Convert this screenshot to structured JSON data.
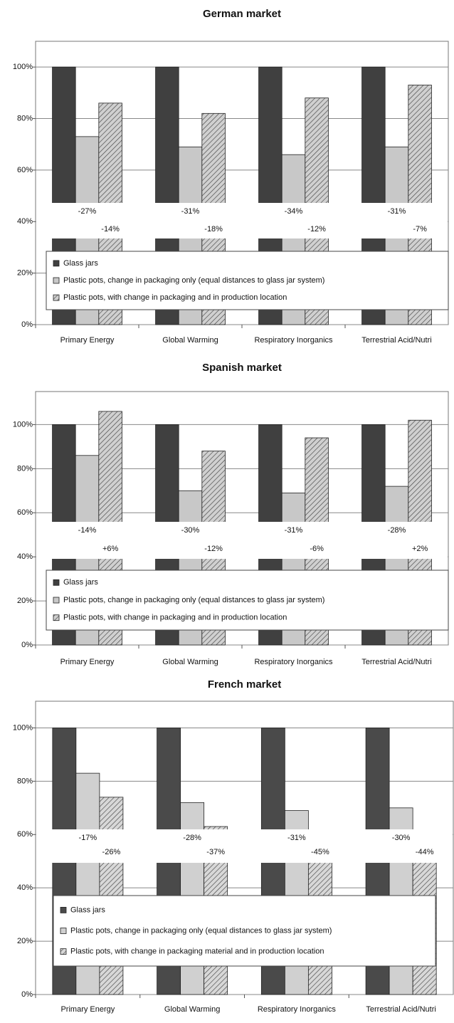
{
  "chart_data": [
    {
      "type": "bar",
      "title": "German market",
      "categories": [
        "Primary Energy",
        "Global Warming",
        "Respiratory Inorganics",
        "Terrestrial Acid/Nutri"
      ],
      "series": [
        {
          "name": "Glass jars",
          "color": "#404040",
          "values": [
            100,
            100,
            100,
            100
          ]
        },
        {
          "name": "Plastic pots, change in packaging only (equal distances to glass jar system)",
          "color": "#c8c8c8",
          "values": [
            73,
            69,
            66,
            69
          ],
          "change_labels": [
            "-27%",
            "-31%",
            "-34%",
            "-31%"
          ]
        },
        {
          "name": "Plastic pots, with change in packaging and in production location",
          "color": "#d0d0d0",
          "pattern": "hatch",
          "values": [
            86,
            82,
            88,
            93
          ],
          "change_labels": [
            "-14%",
            "-18%",
            "-12%",
            "-7%"
          ]
        }
      ],
      "ylim": [
        0,
        110
      ],
      "yticks": [
        {
          "value": 0,
          "label": "0%"
        },
        {
          "value": 20,
          "label": "20%"
        },
        {
          "value": 40,
          "label": "40%"
        },
        {
          "value": 60,
          "label": "60%"
        },
        {
          "value": 80,
          "label": "80%"
        },
        {
          "value": 100,
          "label": "100%"
        }
      ],
      "grid": true
    },
    {
      "type": "bar",
      "title": "Spanish market",
      "categories": [
        "Primary Energy",
        "Global Warming",
        "Respiratory Inorganics",
        "Terrestrial Acid/Nutri"
      ],
      "series": [
        {
          "name": "Glass jars",
          "color": "#404040",
          "values": [
            100,
            100,
            100,
            100
          ]
        },
        {
          "name": "Plastic pots, change in packaging only (equal distances to glass jar system)",
          "color": "#c8c8c8",
          "values": [
            86,
            70,
            69,
            72
          ],
          "change_labels": [
            "-14%",
            "-30%",
            "-31%",
            "-28%"
          ]
        },
        {
          "name": "Plastic pots, with change in packaging and in production location",
          "color": "#d0d0d0",
          "pattern": "hatch",
          "values": [
            106,
            88,
            94,
            102
          ],
          "change_labels": [
            "+6%",
            "-12%",
            "-6%",
            "+2%"
          ]
        }
      ],
      "ylim": [
        0,
        115
      ],
      "yticks": [
        {
          "value": 0,
          "label": "0%"
        },
        {
          "value": 20,
          "label": "20%"
        },
        {
          "value": 40,
          "label": "40%"
        },
        {
          "value": 60,
          "label": "60%"
        },
        {
          "value": 80,
          "label": "80%"
        },
        {
          "value": 100,
          "label": "100%"
        }
      ],
      "grid": true
    },
    {
      "type": "bar",
      "title": "French market",
      "categories": [
        "Primary Energy",
        "Global Warming",
        "Respiratory Inorganics",
        "Terrestrial Acid/Nutri"
      ],
      "series": [
        {
          "name": "Glass jars",
          "color": "#4a4a4a",
          "values": [
            100,
            100,
            100,
            100
          ]
        },
        {
          "name": "Plastic pots, change in packaging only (equal distances to glass jar system)",
          "color": "#d0d0d0",
          "values": [
            83,
            72,
            69,
            70
          ],
          "change_labels": [
            "-17%",
            "-28%",
            "-31%",
            "-30%"
          ]
        },
        {
          "name": "Plastic pots, with change in packaging material and in production location",
          "color": "#d8d8d8",
          "pattern": "hatch",
          "values": [
            74,
            63,
            55,
            56
          ],
          "change_labels": [
            "-26%",
            "-37%",
            "-45%",
            "-44%"
          ]
        }
      ],
      "ylim": [
        0,
        110
      ],
      "yticks": [
        {
          "value": 0,
          "label": "0%"
        },
        {
          "value": 20,
          "label": "20%"
        },
        {
          "value": 40,
          "label": "40%"
        },
        {
          "value": 60,
          "label": "60%"
        },
        {
          "value": 80,
          "label": "80%"
        },
        {
          "value": 100,
          "label": "100%"
        }
      ],
      "grid": true
    }
  ]
}
